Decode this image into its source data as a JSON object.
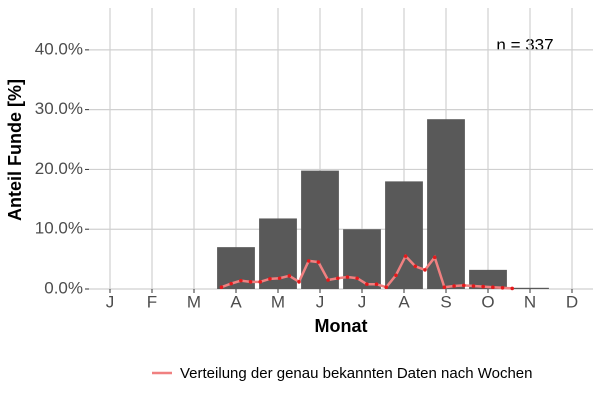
{
  "chart_data": {
    "type": "bar",
    "xlabel": "Monat",
    "ylabel": "Anteil Funde [%]",
    "annotation": "n = 337",
    "categories": [
      "J",
      "F",
      "M",
      "A",
      "M",
      "J",
      "J",
      "A",
      "S",
      "O",
      "N",
      "D"
    ],
    "values": [
      0,
      0,
      0,
      7.0,
      11.8,
      19.8,
      10.0,
      18.0,
      28.4,
      3.2,
      0.2,
      0
    ],
    "color": "#595959",
    "ylim": [
      0,
      47
    ],
    "yticks": [
      {
        "value": 0,
        "label": "0.0%"
      },
      {
        "value": 10,
        "label": "10.0%"
      },
      {
        "value": 20,
        "label": "20.0%"
      },
      {
        "value": 30,
        "label": "30.0%"
      },
      {
        "value": 40,
        "label": "40.0%"
      }
    ],
    "grid": true,
    "line": {
      "name": "Verteilung der genau bekannten Daten nach Wochen",
      "color": "#f08080",
      "point_color": "#e41a1c",
      "x": [
        14,
        15,
        16,
        17,
        18,
        19,
        20,
        21,
        22,
        23,
        24,
        25,
        26,
        27,
        28,
        29,
        30,
        31,
        32,
        33,
        34,
        35,
        36,
        37,
        38,
        39,
        40,
        41,
        42,
        43,
        44
      ],
      "values": [
        0.3,
        0.9,
        1.4,
        1.2,
        1.2,
        1.7,
        1.8,
        2.2,
        1.2,
        4.7,
        4.5,
        1.5,
        1.8,
        2.0,
        1.8,
        0.8,
        0.8,
        0.3,
        2.3,
        5.5,
        3.8,
        3.2,
        5.3,
        0.3,
        0.5,
        0.6,
        0.5,
        0.4,
        0.3,
        0.2,
        0.1
      ]
    },
    "legend": "bottom"
  }
}
